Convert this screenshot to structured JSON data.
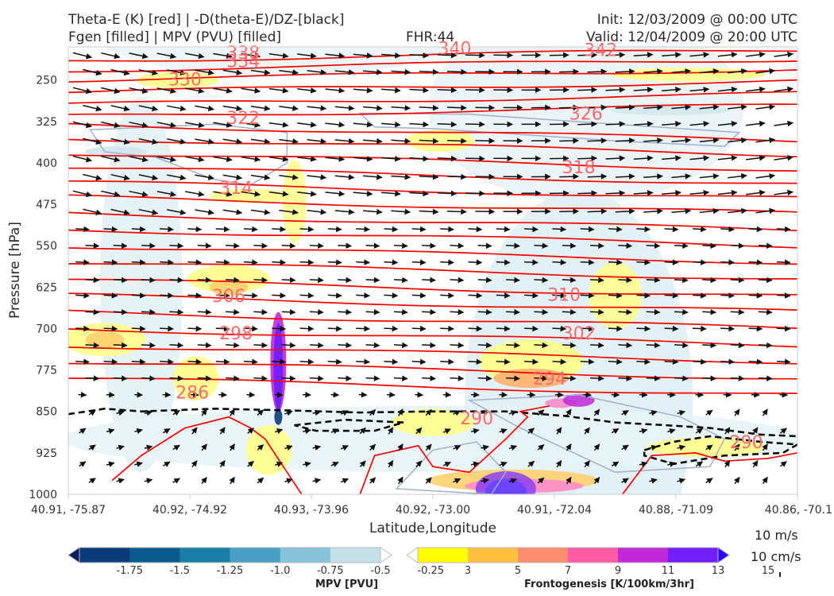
{
  "header": {
    "line1_left": "Theta-E (K) [red] | -D(theta-E)/DZ-[black]",
    "line2_left": "Fgen [filled] | MPV (PVU) [filled]",
    "fhr": "FHR:44",
    "init": "Init: 12/03/2009 @ 00:00 UTC",
    "valid": "Valid: 12/04/2009 @ 20:00 UTC"
  },
  "chart_data": {
    "type": "contour-cross-section",
    "xlabel": "Latitude,Longitude",
    "ylabel": "Pressure [hPa]",
    "xticks": [
      "40.91, -75.87",
      "40.92, -74.92",
      "40.93, -73.96",
      "40.92, -73.00",
      "40.91, -72.04",
      "40.88, -71.09",
      "40.86, -70.1"
    ],
    "yticks": [
      250,
      325,
      400,
      475,
      550,
      625,
      700,
      775,
      850,
      925,
      1000
    ],
    "ylim": [
      1000,
      190
    ],
    "pressure_axis_reversed": true,
    "theta_e_contours": {
      "color": "#ff0000",
      "label_color": "#ff6b6b",
      "labels": [
        {
          "value": "338",
          "x": 0.24,
          "p": 200
        },
        {
          "value": "334",
          "x": 0.24,
          "p": 215
        },
        {
          "value": "330",
          "x": 0.16,
          "p": 248
        },
        {
          "value": "342",
          "x": 0.73,
          "p": 195
        },
        {
          "value": "340",
          "x": 0.53,
          "p": 192
        },
        {
          "value": "326",
          "x": 0.71,
          "p": 310
        },
        {
          "value": "322",
          "x": 0.24,
          "p": 318
        },
        {
          "value": "318",
          "x": 0.7,
          "p": 407
        },
        {
          "value": "314",
          "x": 0.23,
          "p": 445
        },
        {
          "value": "310",
          "x": 0.68,
          "p": 638
        },
        {
          "value": "306",
          "x": 0.22,
          "p": 640
        },
        {
          "value": "302",
          "x": 0.7,
          "p": 708
        },
        {
          "value": "298",
          "x": 0.23,
          "p": 708
        },
        {
          "value": "294",
          "x": 0.66,
          "p": 790
        },
        {
          "value": "286",
          "x": 0.17,
          "p": 815
        },
        {
          "value": "290",
          "x": 0.56,
          "p": 862
        },
        {
          "value": "290",
          "x": 0.93,
          "p": 905
        }
      ]
    },
    "mpv_colorbar": {
      "label": "MPV [PVU]",
      "ticks": [
        "-1.75",
        "-1.5",
        "-1.25",
        "-1.0",
        "-0.75",
        "-0.5",
        "-0.25"
      ],
      "colors": [
        "#0a1f5c",
        "#0b3a78",
        "#0b5a8e",
        "#1a7fa6",
        "#4aa0c4",
        "#86c2d8",
        "#c4e0ea",
        "#ffffff"
      ]
    },
    "fgen_colorbar": {
      "label": "Frontogenesis [K/100km/3hr]",
      "ticks": [
        "3",
        "5",
        "7",
        "9",
        "11",
        "13",
        "15"
      ],
      "colors": [
        "#ffffff",
        "#ffff00",
        "#ffc040",
        "#ff8c6e",
        "#ff5aa6",
        "#c028d8",
        "#7020ff",
        "#2a00ff"
      ]
    },
    "wind_reference": {
      "horizontal": "10 m/s",
      "vertical": "10 cm/s"
    }
  }
}
